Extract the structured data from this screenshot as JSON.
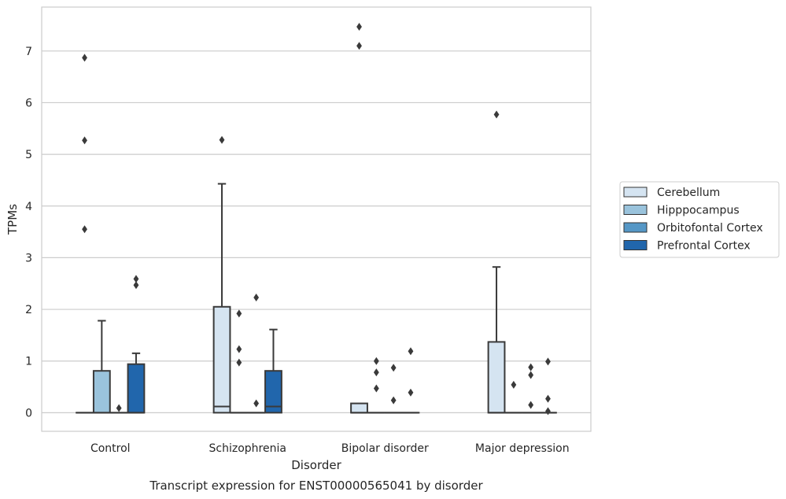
{
  "chart_data": {
    "type": "box",
    "title": "",
    "caption": "Transcript expression for ENST00000565041 by disorder",
    "xlabel": "Disorder",
    "ylabel": "TPMs",
    "ylim": [
      -0.36,
      7.85
    ],
    "yticks": [
      0,
      1,
      2,
      3,
      4,
      5,
      6,
      7
    ],
    "categories": [
      "Control",
      "Schizophrenia",
      "Bipolar disorder",
      "Major depression"
    ],
    "grid": "horizontal",
    "legend_position": "right",
    "series": [
      {
        "name": "Cerebellum",
        "color": "#d5e4f1",
        "boxes": [
          {
            "q1": 0,
            "median": 0,
            "q3": 0,
            "whislo": 0,
            "whishi": 0,
            "fliers": [
              3.55,
              5.27,
              6.87
            ]
          },
          {
            "q1": 0,
            "median": 0.12,
            "q3": 2.05,
            "whislo": 0,
            "whishi": 4.43,
            "fliers": [
              5.28
            ]
          },
          {
            "q1": 0,
            "median": 0,
            "q3": 0.18,
            "whislo": 0,
            "whishi": 0.18,
            "fliers": [
              7.1,
              7.47
            ]
          },
          {
            "q1": 0,
            "median": 0,
            "q3": 1.37,
            "whislo": 0,
            "whishi": 2.82,
            "fliers": [
              5.77
            ]
          }
        ]
      },
      {
        "name": "Hipppocampus",
        "color": "#9ac3dc",
        "boxes": [
          {
            "q1": 0,
            "median": 0,
            "q3": 0.81,
            "whislo": 0,
            "whishi": 1.78,
            "fliers": []
          },
          {
            "q1": 0,
            "median": 0,
            "q3": 0,
            "whislo": 0,
            "whishi": 0,
            "fliers": [
              0.97,
              1.23,
              1.92
            ]
          },
          {
            "q1": 0,
            "median": 0,
            "q3": 0,
            "whislo": 0,
            "whishi": 0,
            "fliers": [
              0.47,
              0.78,
              1.0
            ]
          },
          {
            "q1": 0,
            "median": 0,
            "q3": 0,
            "whislo": 0,
            "whishi": 0,
            "fliers": [
              0.54
            ]
          }
        ]
      },
      {
        "name": "Orbitofontal Cortex",
        "color": "#5597c6",
        "boxes": [
          {
            "q1": 0,
            "median": 0,
            "q3": 0,
            "whislo": 0,
            "whishi": 0,
            "fliers": [
              0.09
            ]
          },
          {
            "q1": 0,
            "median": 0,
            "q3": 0,
            "whislo": 0,
            "whishi": 0,
            "fliers": [
              0.18,
              2.23
            ]
          },
          {
            "q1": 0,
            "median": 0,
            "q3": 0,
            "whislo": 0,
            "whishi": 0,
            "fliers": [
              0.24,
              0.87
            ]
          },
          {
            "q1": 0,
            "median": 0,
            "q3": 0,
            "whislo": 0,
            "whishi": 0,
            "fliers": [
              0.15,
              0.73,
              0.88
            ]
          }
        ]
      },
      {
        "name": "Prefrontal Cortex",
        "color": "#2166ac",
        "boxes": [
          {
            "q1": 0,
            "median": 0,
            "q3": 0.94,
            "whislo": 0,
            "whishi": 1.15,
            "fliers": [
              2.47,
              2.59
            ]
          },
          {
            "q1": 0,
            "median": 0.12,
            "q3": 0.81,
            "whislo": 0,
            "whishi": 1.61,
            "fliers": []
          },
          {
            "q1": 0,
            "median": 0,
            "q3": 0,
            "whislo": 0,
            "whishi": 0,
            "fliers": [
              0.39,
              1.19
            ]
          },
          {
            "q1": 0,
            "median": 0,
            "q3": 0,
            "whislo": 0,
            "whishi": 0,
            "fliers": [
              0.03,
              0.27,
              0.99
            ]
          }
        ]
      }
    ]
  }
}
